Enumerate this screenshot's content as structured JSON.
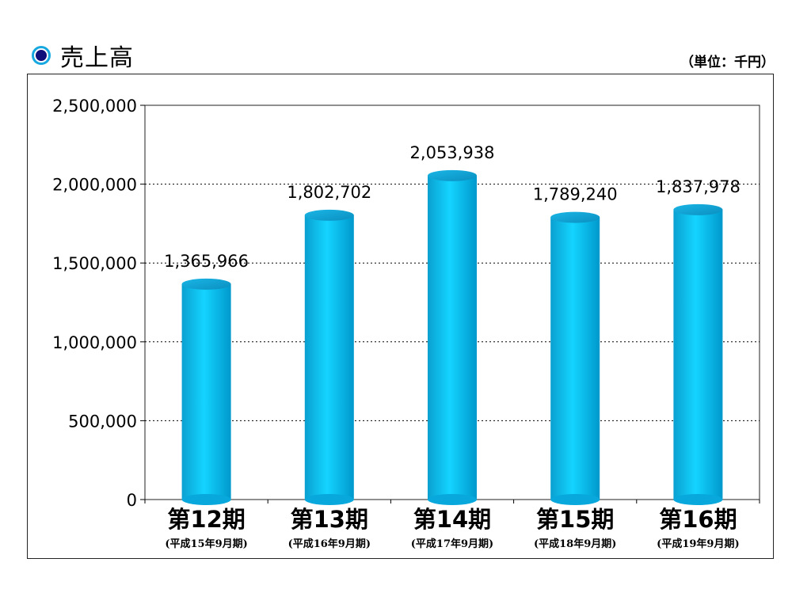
{
  "title": "売上高",
  "unit_label": "（単位：千円）",
  "chart_data": {
    "type": "bar",
    "categories": [
      "第12期",
      "第13期",
      "第14期",
      "第15期",
      "第16期"
    ],
    "sub_labels": [
      "(平成15年9月期)",
      "(平成16年9月期)",
      "(平成17年9月期)",
      "(平成18年9月期)",
      "(平成19年9月期)"
    ],
    "values": [
      1365966,
      1802702,
      2053938,
      1789240,
      1837978
    ],
    "value_labels": [
      "1,365,966",
      "1,802,702",
      "2,053,938",
      "1,789,240",
      "1,837,978"
    ],
    "ylim": [
      0,
      2500000
    ],
    "yticks": [
      0,
      500000,
      1000000,
      1500000,
      2000000,
      2500000
    ],
    "ytick_labels": [
      "0",
      "500,000",
      "1,000,000",
      "1,500,000",
      "2,000,000",
      "2,500,000"
    ],
    "grid": true,
    "bar_color": "#00c4f0"
  }
}
